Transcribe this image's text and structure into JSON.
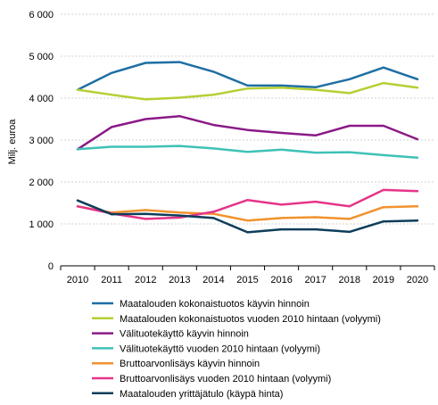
{
  "chart_data": {
    "type": "line",
    "ylabel": "Milj. euroa",
    "xlabel": "",
    "ylim": [
      0,
      6000
    ],
    "yticks": [
      0,
      1000,
      2000,
      3000,
      4000,
      5000,
      6000
    ],
    "ytick_labels": [
      "0",
      "1 000",
      "2 000",
      "3 000",
      "4 000",
      "5 000",
      "6 000"
    ],
    "x": [
      "2010",
      "2011",
      "2012",
      "2013",
      "2014",
      "2015",
      "2016",
      "2017",
      "2018",
      "2019",
      "2020"
    ],
    "grid": "horizontal",
    "legend_position": "bottom",
    "series": [
      {
        "name": "Maatalouden kokonaistuotos käyvin hinnoin",
        "color": "#1f6fa3",
        "values": [
          4200,
          4600,
          4840,
          4860,
          4630,
          4300,
          4300,
          4260,
          4450,
          4730,
          4450
        ]
      },
      {
        "name": "Maatalouden kokonaistuotos vuoden 2010 hintaan (volyymi)",
        "color": "#b5cf33",
        "values": [
          4200,
          4080,
          3970,
          4010,
          4080,
          4230,
          4250,
          4200,
          4120,
          4360,
          4250
        ]
      },
      {
        "name": "Välituotekäyttö käyvin hinnoin",
        "color": "#8b1a87",
        "values": [
          2780,
          3310,
          3500,
          3570,
          3360,
          3240,
          3170,
          3110,
          3340,
          3340,
          3020
        ]
      },
      {
        "name": "Välituotekäyttö vuoden 2010 hintaan  (volyymi)",
        "color": "#3fc1b7",
        "values": [
          2780,
          2840,
          2840,
          2860,
          2800,
          2720,
          2770,
          2700,
          2710,
          2640,
          2580
        ]
      },
      {
        "name": "Bruttoarvonlisäys  käyvin hinnoin",
        "color": "#f2922e",
        "values": [
          1420,
          1270,
          1330,
          1270,
          1240,
          1080,
          1140,
          1160,
          1120,
          1400,
          1420
        ]
      },
      {
        "name": "Bruttoarvonlisäys vuoden 2010 hintaan  (volyymi)",
        "color": "#e6348a",
        "values": [
          1420,
          1250,
          1120,
          1150,
          1290,
          1570,
          1460,
          1530,
          1420,
          1810,
          1780
        ]
      },
      {
        "name": "Maatalouden yrittäjätulo (käypä hinta)",
        "color": "#0e3d5a",
        "values": [
          1560,
          1230,
          1240,
          1200,
          1140,
          800,
          870,
          870,
          810,
          1060,
          1080
        ]
      }
    ]
  }
}
